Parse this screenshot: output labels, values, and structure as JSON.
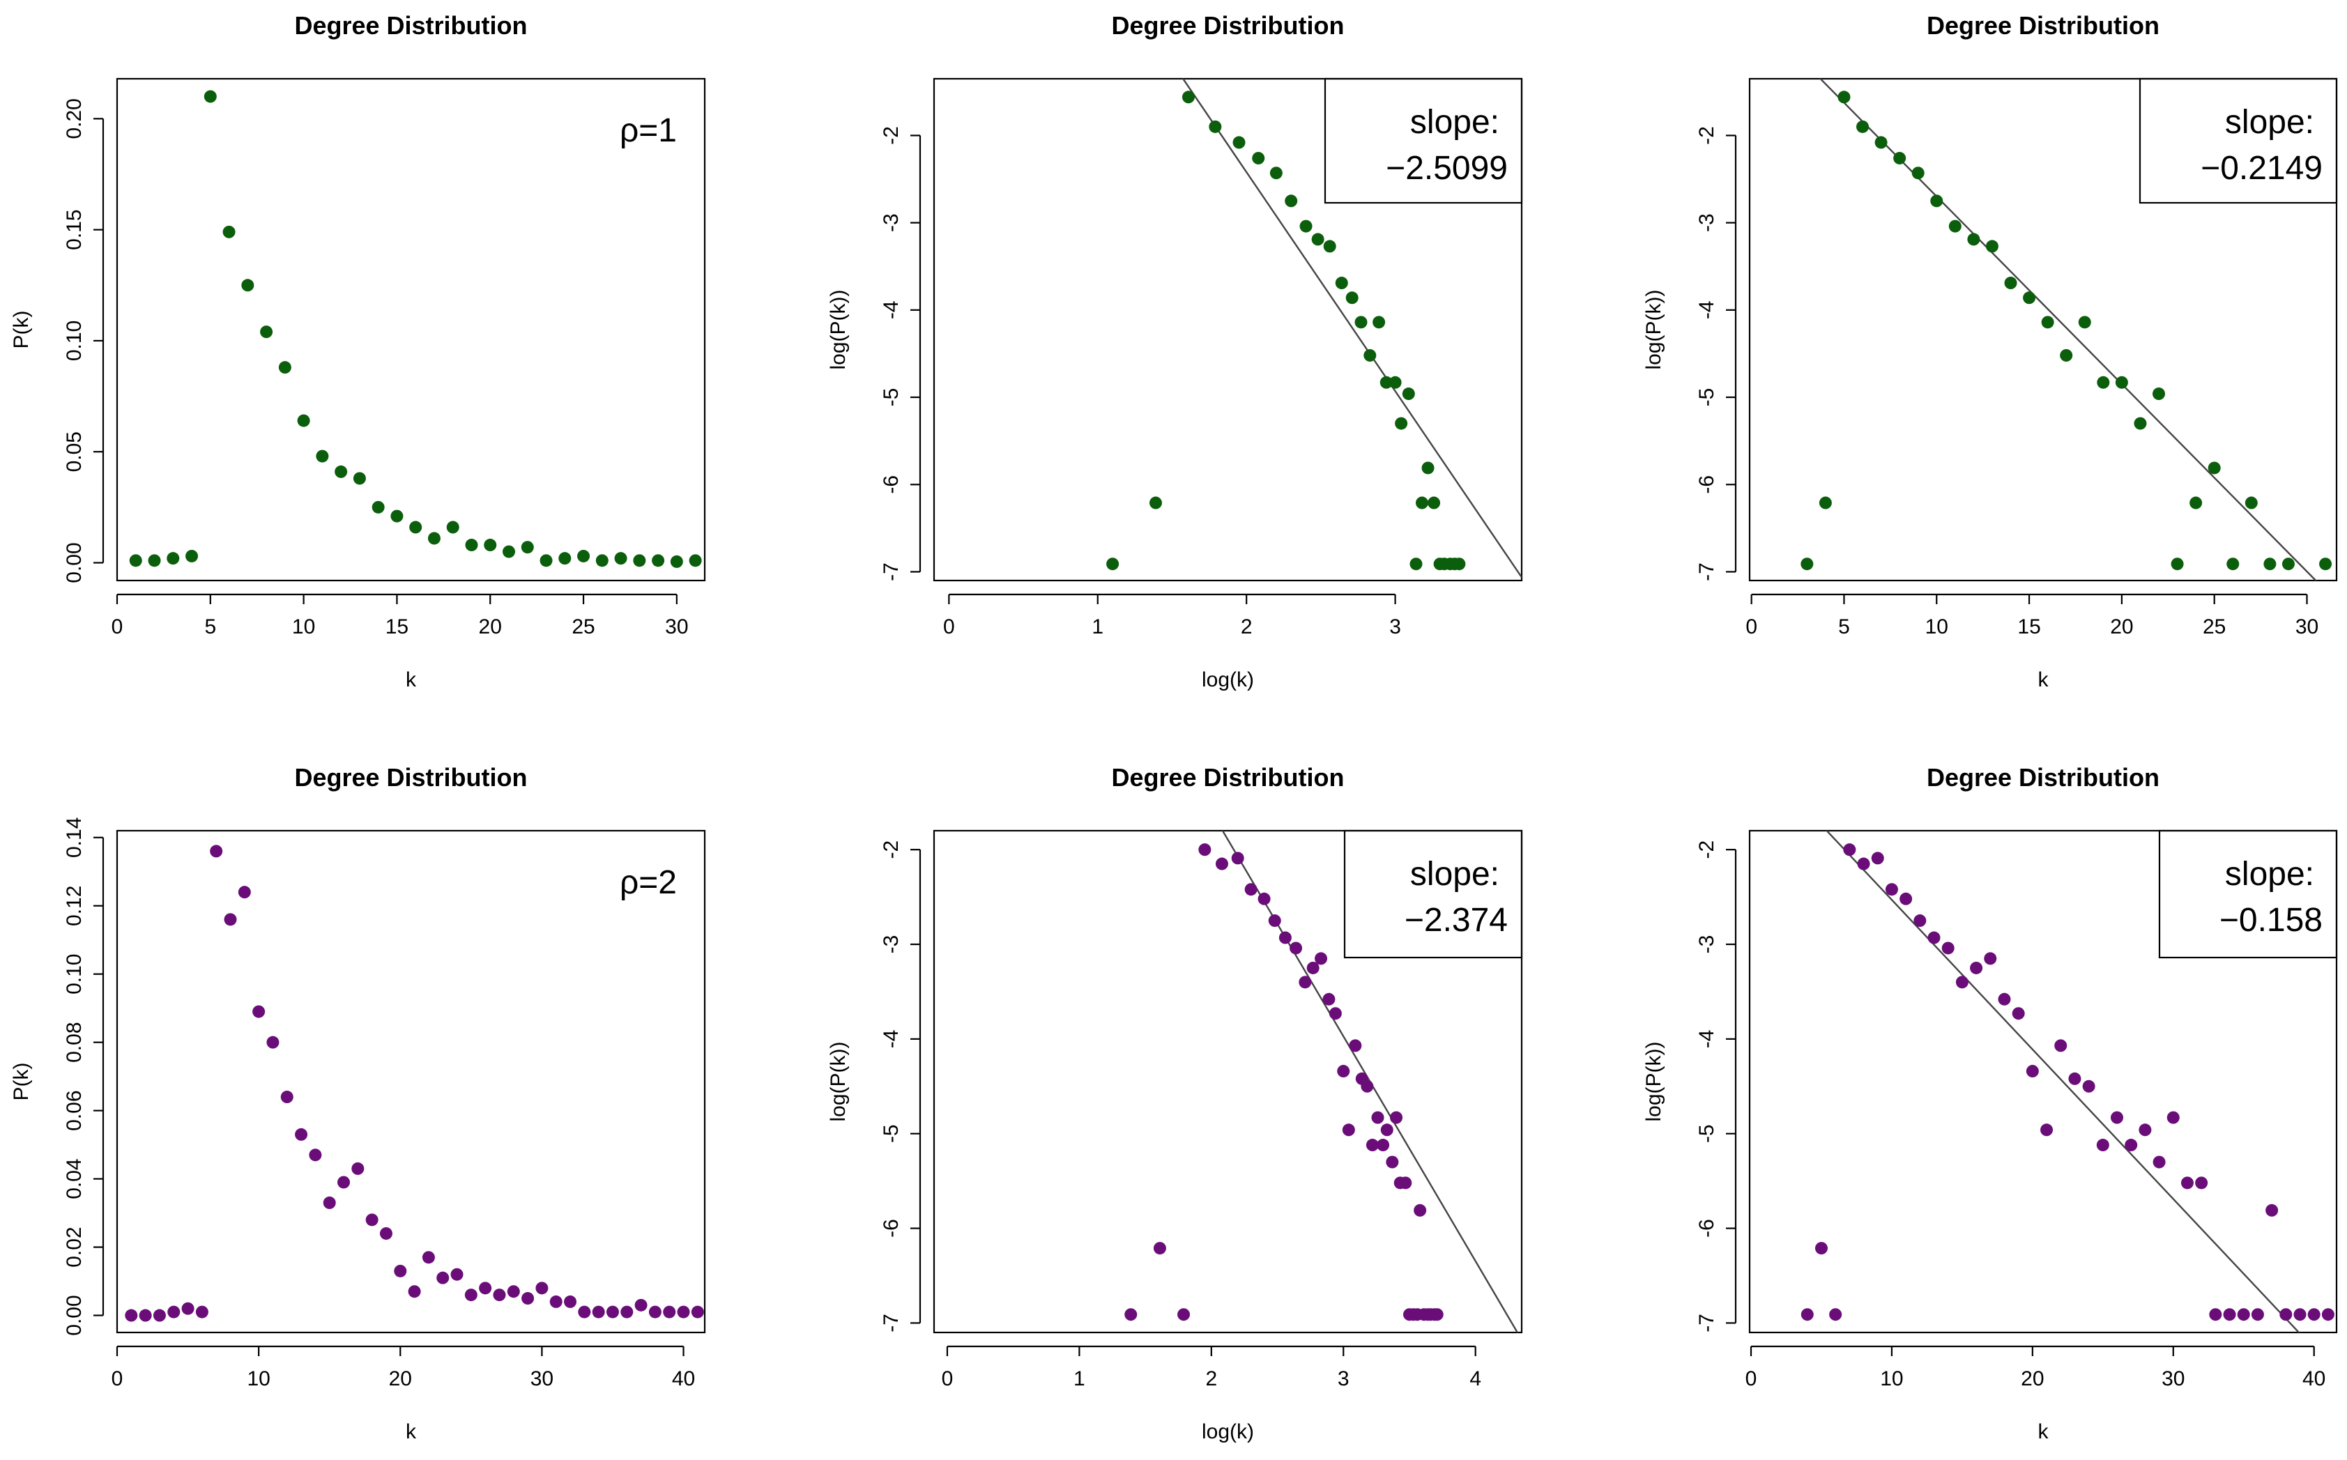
{
  "chart_data": [
    {
      "type": "scatter",
      "title": "Degree Distribution",
      "xlabel": "k",
      "ylabel": "P(k)",
      "annotation": "ρ=1",
      "color": "#0b5e0b",
      "xlim": [
        0,
        31.5
      ],
      "ylim": [
        -0.008,
        0.218
      ],
      "xticks": [
        0,
        5,
        10,
        15,
        20,
        25,
        30
      ],
      "yticks": [
        0.0,
        0.05,
        0.1,
        0.15,
        0.2
      ],
      "ytick_labels": [
        "0.00",
        "0.05",
        "0.10",
        "0.15",
        "0.20"
      ],
      "grid": false,
      "x": [
        1,
        2,
        3,
        4,
        5,
        6,
        7,
        8,
        9,
        10,
        11,
        12,
        13,
        14,
        15,
        16,
        17,
        18,
        19,
        20,
        21,
        22,
        23,
        24,
        25,
        26,
        27,
        28,
        29,
        30,
        31
      ],
      "y": [
        0.001,
        0.001,
        0.002,
        0.003,
        0.21,
        0.149,
        0.125,
        0.104,
        0.088,
        0.064,
        0.048,
        0.041,
        0.038,
        0.025,
        0.021,
        0.016,
        0.011,
        0.016,
        0.008,
        0.008,
        0.005,
        0.007,
        0.001,
        0.002,
        0.003,
        0.001,
        0.002,
        0.001,
        0.001,
        0.0005,
        0.001
      ]
    },
    {
      "type": "scatter",
      "title": "Degree Distribution",
      "xlabel": "log(k)",
      "ylabel": "log(P(k))",
      "annotation_label": "slope:",
      "annotation_value": "−2.5099",
      "color": "#0b5e0b",
      "xlim": [
        -0.1,
        3.85
      ],
      "ylim": [
        -7.1,
        -1.35
      ],
      "xticks": [
        0,
        1,
        2,
        3
      ],
      "yticks": [
        -2,
        -3,
        -4,
        -5,
        -6,
        -7
      ],
      "grid": false,
      "fit": {
        "slope": -2.5099,
        "intercept": 2.6
      },
      "x": [
        1.1,
        1.39,
        1.61,
        1.79,
        1.95,
        2.08,
        2.2,
        2.3,
        2.4,
        2.48,
        2.56,
        2.64,
        2.71,
        2.77,
        2.83,
        2.89,
        2.94,
        3.0,
        3.04,
        3.09,
        3.14,
        3.18,
        3.22,
        3.26,
        3.3,
        3.33,
        3.37,
        3.4,
        3.43
      ],
      "y": [
        -6.91,
        -6.21,
        -1.56,
        -1.9,
        -2.08,
        -2.26,
        -2.43,
        -2.75,
        -3.04,
        -3.19,
        -3.27,
        -3.69,
        -3.86,
        -4.14,
        -4.52,
        -4.14,
        -4.83,
        -4.83,
        -5.3,
        -4.96,
        -6.91,
        -6.21,
        -5.81,
        -6.21,
        -6.91,
        -6.91,
        -6.91,
        -6.91,
        -6.91
      ]
    },
    {
      "type": "scatter",
      "title": "Degree Distribution",
      "xlabel": "k",
      "ylabel": "log(P(k))",
      "annotation_label": "slope:",
      "annotation_value": "−0.2149",
      "color": "#0b5e0b",
      "xlim": [
        -0.1,
        31.6
      ],
      "ylim": [
        -7.1,
        -1.35
      ],
      "xticks": [
        0,
        5,
        10,
        15,
        20,
        25,
        30
      ],
      "yticks": [
        -2,
        -3,
        -4,
        -5,
        -6,
        -7
      ],
      "grid": false,
      "fit": {
        "slope": -0.2149,
        "intercept": -0.55
      },
      "x": [
        3,
        4,
        5,
        6,
        7,
        8,
        9,
        10,
        11,
        12,
        13,
        14,
        15,
        16,
        17,
        18,
        19,
        20,
        21,
        22,
        23,
        24,
        25,
        26,
        27,
        28,
        29,
        31
      ],
      "y": [
        -6.91,
        -6.21,
        -1.56,
        -1.9,
        -2.08,
        -2.26,
        -2.43,
        -2.75,
        -3.04,
        -3.19,
        -3.27,
        -3.69,
        -3.86,
        -4.14,
        -4.52,
        -4.14,
        -4.83,
        -4.83,
        -5.3,
        -4.96,
        -6.91,
        -6.21,
        -5.81,
        -6.91,
        -6.21,
        -6.91,
        -6.91,
        -6.91
      ]
    },
    {
      "type": "scatter",
      "title": "Degree Distribution",
      "xlabel": "k",
      "ylabel": "P(k)",
      "annotation": "ρ=2",
      "color": "#6a0d79",
      "xlim": [
        0,
        41.5
      ],
      "ylim": [
        -0.005,
        0.142
      ],
      "xticks": [
        0,
        10,
        20,
        30,
        40
      ],
      "yticks": [
        0.0,
        0.02,
        0.04,
        0.06,
        0.08,
        0.1,
        0.12,
        0.14
      ],
      "ytick_labels": [
        "0.00",
        "0.02",
        "0.04",
        "0.06",
        "0.08",
        "0.10",
        "0.12",
        "0.14"
      ],
      "grid": false,
      "x": [
        1,
        2,
        3,
        4,
        5,
        6,
        7,
        8,
        9,
        10,
        11,
        12,
        13,
        14,
        15,
        16,
        17,
        18,
        19,
        20,
        21,
        22,
        23,
        24,
        25,
        26,
        27,
        28,
        29,
        30,
        31,
        32,
        33,
        34,
        35,
        36,
        37,
        38,
        39,
        40,
        41
      ],
      "y": [
        0.0,
        0.0,
        0.0,
        0.001,
        0.002,
        0.001,
        0.136,
        0.116,
        0.124,
        0.089,
        0.08,
        0.064,
        0.053,
        0.047,
        0.033,
        0.039,
        0.043,
        0.028,
        0.024,
        0.013,
        0.007,
        0.017,
        0.011,
        0.012,
        0.006,
        0.008,
        0.006,
        0.007,
        0.005,
        0.008,
        0.004,
        0.004,
        0.001,
        0.001,
        0.001,
        0.001,
        0.003,
        0.001,
        0.001,
        0.001,
        0.001
      ]
    },
    {
      "type": "scatter",
      "title": "Degree Distribution",
      "xlabel": "log(k)",
      "ylabel": "log(P(k))",
      "annotation_label": "slope:",
      "annotation_value": "−2.374",
      "color": "#6a0d79",
      "xlim": [
        -0.1,
        4.35
      ],
      "ylim": [
        -7.1,
        -1.8
      ],
      "xticks": [
        0,
        1,
        2,
        3,
        4
      ],
      "yticks": [
        -2,
        -3,
        -4,
        -5,
        -6,
        -7
      ],
      "grid": false,
      "fit": {
        "slope": -2.374,
        "intercept": 3.15
      },
      "x": [
        1.39,
        1.61,
        1.79,
        1.95,
        2.08,
        2.2,
        2.3,
        2.4,
        2.48,
        2.56,
        2.64,
        2.71,
        2.77,
        2.83,
        2.89,
        2.94,
        3.0,
        3.04,
        3.09,
        3.14,
        3.18,
        3.22,
        3.26,
        3.3,
        3.33,
        3.37,
        3.4,
        3.43,
        3.47,
        3.5,
        3.53,
        3.56,
        3.58,
        3.61,
        3.64,
        3.66,
        3.69,
        3.71
      ],
      "y": [
        -6.91,
        -6.21,
        -6.91,
        -2.0,
        -2.15,
        -2.09,
        -2.42,
        -2.52,
        -2.75,
        -2.93,
        -3.04,
        -3.4,
        -3.25,
        -3.15,
        -3.58,
        -3.73,
        -4.34,
        -4.96,
        -4.07,
        -4.42,
        -4.5,
        -5.12,
        -4.83,
        -5.12,
        -4.96,
        -5.3,
        -4.83,
        -5.52,
        -5.52,
        -6.91,
        -6.91,
        -6.91,
        -5.81,
        -6.91,
        -6.91,
        -6.91,
        -6.91,
        -6.91
      ]
    },
    {
      "type": "scatter",
      "title": "Degree Distribution",
      "xlabel": "k",
      "ylabel": "log(P(k))",
      "annotation_label": "slope:",
      "annotation_value": "−0.158",
      "color": "#6a0d79",
      "xlim": [
        -0.1,
        41.6
      ],
      "ylim": [
        -7.1,
        -1.8
      ],
      "xticks": [
        0,
        10,
        20,
        30,
        40
      ],
      "yticks": [
        -2,
        -3,
        -4,
        -5,
        -6,
        -7
      ],
      "grid": false,
      "fit": {
        "slope": -0.158,
        "intercept": -0.95
      },
      "x": [
        4,
        5,
        6,
        7,
        8,
        9,
        10,
        11,
        12,
        13,
        14,
        15,
        16,
        17,
        18,
        19,
        20,
        21,
        22,
        23,
        24,
        25,
        26,
        27,
        28,
        29,
        30,
        31,
        32,
        33,
        34,
        35,
        36,
        37,
        38,
        39,
        40,
        41
      ],
      "y": [
        -6.91,
        -6.21,
        -6.91,
        -2.0,
        -2.15,
        -2.09,
        -2.42,
        -2.52,
        -2.75,
        -2.93,
        -3.04,
        -3.4,
        -3.25,
        -3.15,
        -3.58,
        -3.73,
        -4.34,
        -4.96,
        -4.07,
        -4.42,
        -4.5,
        -5.12,
        -4.83,
        -5.12,
        -4.96,
        -5.3,
        -4.83,
        -5.52,
        -5.52,
        -6.91,
        -6.91,
        -6.91,
        -6.91,
        -5.81,
        -6.91,
        -6.91,
        -6.91,
        -6.91
      ]
    }
  ]
}
